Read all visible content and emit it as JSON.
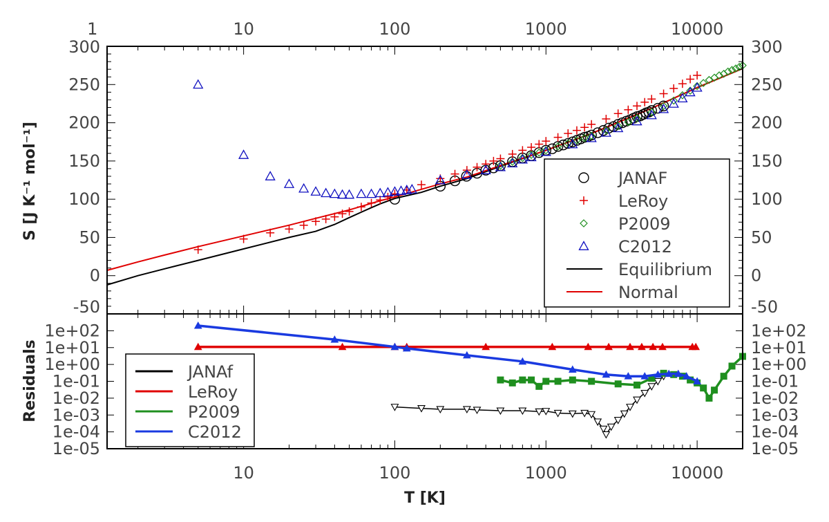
{
  "chart_data": [
    {
      "type": "scatter",
      "panel": "top",
      "ylabel": "S [J K⁻¹ mol⁻¹]",
      "x_scale": "log",
      "xlim": [
        1.25,
        20000
      ],
      "ylim": [
        -50,
        300
      ],
      "top_tick_labels": [
        "1",
        "10",
        "100",
        "1000",
        "10000"
      ],
      "y_tick_labels": [
        "-50",
        "0",
        "50",
        "100",
        "150",
        "200",
        "250",
        "300"
      ],
      "legend_position": "lower-right",
      "series": [
        {
          "name": "JANAF",
          "marker": "circle",
          "color": "#000000",
          "x": [
            100,
            200,
            250,
            298,
            350,
            400,
            450,
            500,
            600,
            700,
            800,
            900,
            1000,
            1100,
            1200,
            1300,
            1400,
            1500,
            1600,
            1700,
            1800,
            1900,
            2000,
            2200,
            2400,
            2600,
            2800,
            3000,
            3200,
            3400,
            3600,
            3800,
            4000,
            4200,
            4400,
            4600,
            4800,
            5000,
            5500,
            6000
          ],
          "y": [
            100,
            117,
            124,
            130,
            134,
            138,
            141,
            144,
            149,
            154,
            157,
            161,
            164,
            166,
            169,
            171,
            173,
            175,
            177,
            179,
            181,
            182,
            184,
            187,
            190,
            193,
            195,
            198,
            200,
            202,
            204,
            206,
            208,
            209,
            211,
            213,
            214,
            216,
            219,
            222
          ]
        },
        {
          "name": "LeRoy",
          "marker": "plus",
          "color": "#e00000",
          "x": [
            5,
            10,
            15,
            20,
            25,
            30,
            35,
            40,
            45,
            50,
            60,
            70,
            80,
            90,
            100,
            120,
            150,
            200,
            250,
            300,
            350,
            400,
            450,
            500,
            600,
            700,
            800,
            900,
            1000,
            1200,
            1400,
            1600,
            1800,
            2000,
            2500,
            3000,
            3500,
            4000,
            4500,
            5000,
            6000,
            7000,
            8000,
            9000,
            10000
          ],
          "y": [
            34,
            48,
            56,
            61,
            66,
            71,
            74,
            77,
            81,
            84,
            90,
            95,
            99,
            103,
            107,
            112,
            119,
            127,
            133,
            138,
            142,
            146,
            150,
            153,
            159,
            164,
            168,
            172,
            176,
            181,
            186,
            190,
            194,
            198,
            205,
            212,
            217,
            222,
            227,
            231,
            238,
            245,
            251,
            257,
            262
          ]
        },
        {
          "name": "P2009",
          "marker": "diamond",
          "color": "#1f8f1f",
          "x": [
            500,
            600,
            700,
            800,
            900,
            1000,
            1200,
            1400,
            1600,
            1800,
            2000,
            2500,
            3000,
            3500,
            4000,
            5000,
            6000,
            7000,
            8000,
            9000,
            10000,
            11000,
            12000,
            13000,
            14000,
            15000,
            16000,
            17000,
            18000,
            19000,
            20000
          ],
          "y": [
            144,
            149,
            154,
            158,
            161,
            164,
            169,
            173,
            177,
            180,
            183,
            190,
            196,
            201,
            206,
            214,
            222,
            229,
            236,
            242,
            248,
            252,
            256,
            259,
            262,
            264,
            267,
            269,
            271,
            273,
            275
          ]
        },
        {
          "name": "C2012",
          "marker": "triangle",
          "color": "#1010c0",
          "x": [
            5,
            10,
            15,
            20,
            25,
            30,
            35,
            40,
            45,
            50,
            60,
            70,
            80,
            90,
            100,
            110,
            120,
            130,
            200,
            300,
            400,
            500,
            600,
            700,
            800,
            1000,
            1500,
            2000,
            2500,
            3000,
            4000,
            5000,
            6000,
            7000,
            8000,
            9000,
            10000
          ],
          "y": [
            250,
            158,
            130,
            120,
            114,
            110,
            108,
            107,
            106,
            106,
            107,
            107,
            108,
            109,
            110,
            111,
            112,
            113,
            125,
            132,
            138,
            142,
            147,
            152,
            155,
            162,
            172,
            180,
            187,
            193,
            202,
            210,
            218,
            225,
            232,
            240,
            246
          ]
        },
        {
          "name": "Equilibrium",
          "marker": "line",
          "color": "#000000",
          "x": [
            1.25,
            2,
            3,
            5,
            10,
            20,
            30,
            40,
            50,
            60,
            70,
            80,
            100,
            150,
            200,
            300,
            500,
            1000,
            2000,
            5000,
            10000,
            20000
          ],
          "y": [
            -12,
            0,
            9,
            20,
            35,
            50,
            58,
            67,
            76,
            83,
            89,
            94,
            101,
            109,
            117,
            127,
            143,
            164,
            186,
            219,
            246,
            271
          ]
        },
        {
          "name": "Normal",
          "marker": "line",
          "color": "#e00000",
          "x": [
            1.25,
            2,
            3,
            5,
            10,
            20,
            30,
            50,
            80,
            100,
            150,
            200,
            300,
            500,
            1000,
            2000,
            5000,
            10000,
            20000
          ],
          "y": [
            7,
            18,
            27,
            38,
            52,
            66,
            75,
            86,
            98,
            103,
            113,
            120,
            129,
            144,
            164,
            186,
            219,
            246,
            271
          ]
        }
      ]
    },
    {
      "type": "line",
      "panel": "bottom",
      "ylabel": "Residuals",
      "xlabel": "T [K]",
      "x_scale": "log",
      "y_scale": "log",
      "xlim": [
        1.25,
        20000
      ],
      "ylim": [
        1e-05,
        1000
      ],
      "bottom_tick_labels": [
        "10",
        "100",
        "1000",
        "10000"
      ],
      "y_tick_labels": [
        "1e-05",
        "1e-04",
        "1e-03",
        "1e-02",
        "1e-01",
        "1e+00",
        "1e+01",
        "1e+02"
      ],
      "legend_position": "lower-left",
      "series": [
        {
          "name": "JANAf",
          "color": "#000000",
          "marker": "triangle-down-open",
          "x": [
            100,
            150,
            200,
            300,
            350,
            500,
            700,
            900,
            1000,
            1200,
            1500,
            1800,
            2000,
            2200,
            2400,
            2500,
            2700,
            3000,
            3300,
            3600,
            4000,
            4500,
            5000,
            5500,
            6000
          ],
          "y": [
            0.003,
            0.0025,
            0.0022,
            0.0022,
            0.002,
            0.0018,
            0.0018,
            0.0016,
            0.0017,
            0.0013,
            0.0012,
            0.0013,
            0.0011,
            0.0004,
            0.00015,
            7e-05,
            0.0002,
            0.0005,
            0.0012,
            0.003,
            0.008,
            0.02,
            0.05,
            0.1,
            0.2
          ]
        },
        {
          "name": "LeRoy",
          "color": "#e00000",
          "marker": "triangle-up",
          "x": [
            5,
            45,
            100,
            120,
            400,
            1100,
            1900,
            2600,
            3600,
            4300,
            5100,
            5900,
            9300,
            9800
          ],
          "y": [
            11,
            11,
            11,
            11,
            11,
            11,
            11,
            11,
            11,
            11,
            11,
            11,
            11,
            11
          ]
        },
        {
          "name": "P2009",
          "color": "#1f8f1f",
          "marker": "square",
          "x": [
            500,
            600,
            700,
            800,
            900,
            1000,
            1200,
            1500,
            2000,
            3000,
            4000,
            5000,
            6000,
            7000,
            8000,
            9000,
            10000,
            11000,
            12000,
            13000,
            15000,
            17000,
            20000
          ],
          "y": [
            0.12,
            0.08,
            0.12,
            0.12,
            0.05,
            0.1,
            0.1,
            0.12,
            0.1,
            0.07,
            0.06,
            0.15,
            0.3,
            0.25,
            0.2,
            0.12,
            0.08,
            0.04,
            0.01,
            0.03,
            0.2,
            0.8,
            3
          ]
        },
        {
          "name": "C2012",
          "color": "#1a3ae0",
          "marker": "triangle-up",
          "x": [
            5,
            40,
            100,
            120,
            300,
            700,
            1500,
            2500,
            3500,
            4500,
            5500,
            6500,
            7500,
            8500,
            10000
          ],
          "y": [
            200,
            30,
            11,
            9,
            3.5,
            1.5,
            0.5,
            0.25,
            0.2,
            0.2,
            0.25,
            0.28,
            0.28,
            0.2,
            0.1
          ]
        }
      ]
    }
  ]
}
